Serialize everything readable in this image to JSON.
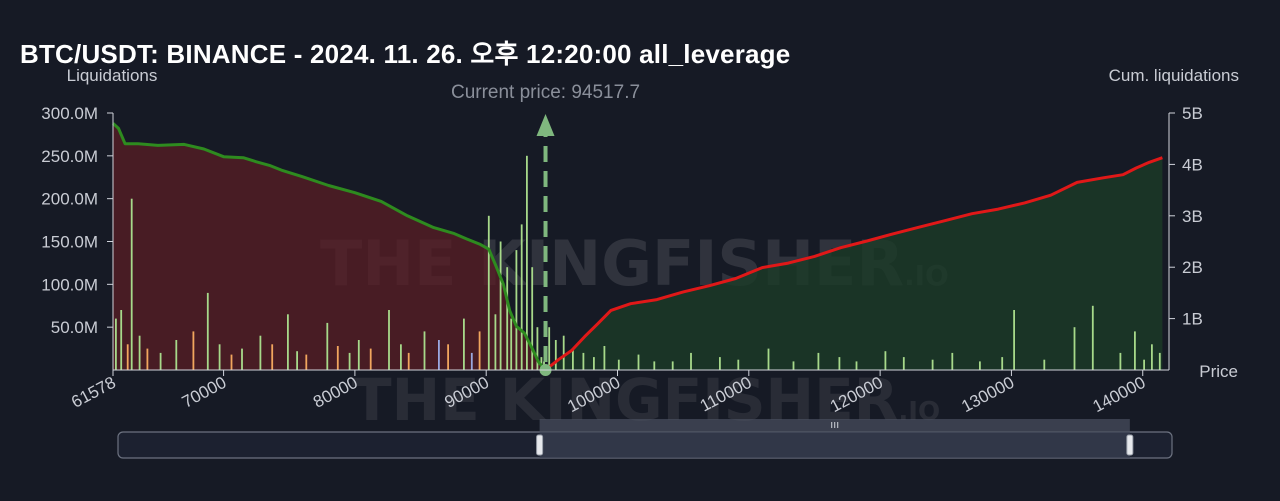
{
  "title": "BTC/USDT: BINANCE - 2024. 11. 26. 오후 12:20:00 all_leverage",
  "watermark": {
    "main": "THE KINGFISHER",
    "suffix": ".IO"
  },
  "colors": {
    "background": "#161a25",
    "short_cum_line": "#2e8b1f",
    "long_cum_line": "#e01818",
    "short_fill": "#5a1d24",
    "long_fill": "#1b3b27",
    "bar_green": "#a7d98a",
    "bar_orange": "#f2a65e",
    "bar_blue": "#9aa8e0",
    "current_price_marker": "#7fb77e"
  },
  "chart_data": {
    "type": "bar+line",
    "left_axis_title": "Liquidations",
    "right_axis_title": "Cum. liquidations",
    "x_axis_title": "Price",
    "current_price_label": "Current price: 94517.7",
    "current_price": 94517.7,
    "x_range": [
      61578,
      142000
    ],
    "x_ticks": [
      {
        "value": 61578,
        "label": "61578"
      },
      {
        "value": 70000,
        "label": "70000"
      },
      {
        "value": 80000,
        "label": "80000"
      },
      {
        "value": 90000,
        "label": "90000"
      },
      {
        "value": 100000,
        "label": "100000"
      },
      {
        "value": 110000,
        "label": "110000"
      },
      {
        "value": 120000,
        "label": "120000"
      },
      {
        "value": 130000,
        "label": "130000"
      },
      {
        "value": 140000,
        "label": "140000"
      }
    ],
    "y_left_range": [
      0,
      300000000
    ],
    "y_left_ticks": [
      {
        "value": 50000000,
        "label": "50.0M"
      },
      {
        "value": 100000000,
        "label": "100.0M"
      },
      {
        "value": 150000000,
        "label": "150.0M"
      },
      {
        "value": 200000000,
        "label": "200.0M"
      },
      {
        "value": 250000000,
        "label": "250.0M"
      },
      {
        "value": 300000000,
        "label": "300.0M"
      }
    ],
    "y_right_range": [
      0,
      5000000000
    ],
    "y_right_ticks": [
      {
        "value": 1000000000,
        "label": "1B"
      },
      {
        "value": 2000000000,
        "label": "2B"
      },
      {
        "value": 3000000000,
        "label": "3B"
      },
      {
        "value": 4000000000,
        "label": "4B"
      },
      {
        "value": 5000000000,
        "label": "5B"
      }
    ],
    "short_cum_series": {
      "x": [
        61578,
        62000,
        62500,
        63500,
        65000,
        67000,
        68500,
        70000,
        71500,
        72500,
        73500,
        74500,
        76000,
        78000,
        80000,
        82000,
        84000,
        86000,
        87500,
        88500,
        89500,
        90200,
        90700,
        91300,
        91800,
        92300,
        92900,
        93500,
        94000,
        94518
      ],
      "y": [
        4800000000,
        4700000000,
        4400000000,
        4400000000,
        4370000000,
        4390000000,
        4300000000,
        4150000000,
        4130000000,
        4050000000,
        3980000000,
        3880000000,
        3760000000,
        3590000000,
        3450000000,
        3280000000,
        3000000000,
        2770000000,
        2660000000,
        2550000000,
        2450000000,
        2350000000,
        2050000000,
        1670000000,
        1150000000,
        850000000,
        720000000,
        420000000,
        150000000,
        0
      ]
    },
    "long_cum_series": {
      "x": [
        94518,
        95500,
        96500,
        97500,
        98500,
        99500,
        101000,
        103000,
        105000,
        107000,
        109000,
        111000,
        113000,
        115000,
        117000,
        119000,
        121000,
        123000,
        125000,
        127000,
        129000,
        131000,
        133000,
        135000,
        137000,
        138500,
        139500,
        140500,
        141500
      ],
      "y": [
        0,
        200000000,
        380000000,
        650000000,
        900000000,
        1160000000,
        1290000000,
        1370000000,
        1520000000,
        1640000000,
        1780000000,
        1990000000,
        2080000000,
        2210000000,
        2380000000,
        2510000000,
        2650000000,
        2780000000,
        2910000000,
        3040000000,
        3130000000,
        3250000000,
        3400000000,
        3650000000,
        3740000000,
        3800000000,
        3930000000,
        4040000000,
        4130000000
      ]
    },
    "liquidation_bars": {
      "x": [
        61800,
        62200,
        62700,
        63000,
        63600,
        64200,
        65200,
        66400,
        67700,
        68800,
        69700,
        70600,
        71400,
        72800,
        73700,
        74900,
        75600,
        76300,
        77900,
        78700,
        79600,
        80300,
        81200,
        82600,
        83500,
        84100,
        85300,
        86400,
        87100,
        88300,
        88900,
        89500,
        90200,
        90700,
        91100,
        91600,
        91900,
        92300,
        92700,
        93100,
        93500,
        93900,
        94200,
        94400,
        94800,
        95300,
        95900,
        96600,
        97400,
        98200,
        99000,
        100100,
        101600,
        102800,
        104200,
        105600,
        107800,
        109200,
        111500,
        113400,
        115300,
        116900,
        118200,
        120400,
        121800,
        124000,
        125500,
        127600,
        129300,
        130200,
        132500,
        134800,
        136200,
        138300,
        139400,
        140100,
        140700,
        141300
      ],
      "values": [
        60000000,
        70000000,
        30000000,
        200000000,
        40000000,
        25000000,
        20000000,
        35000000,
        45000000,
        90000000,
        30000000,
        18000000,
        25000000,
        40000000,
        30000000,
        65000000,
        22000000,
        18000000,
        55000000,
        28000000,
        20000000,
        35000000,
        25000000,
        70000000,
        30000000,
        20000000,
        45000000,
        35000000,
        30000000,
        60000000,
        20000000,
        45000000,
        180000000,
        65000000,
        150000000,
        120000000,
        60000000,
        140000000,
        170000000,
        250000000,
        120000000,
        50000000,
        15000000,
        10000000,
        50000000,
        35000000,
        40000000,
        25000000,
        20000000,
        15000000,
        28000000,
        12000000,
        18000000,
        10000000,
        10000000,
        20000000,
        15000000,
        12000000,
        25000000,
        10000000,
        20000000,
        15000000,
        10000000,
        22000000,
        15000000,
        12000000,
        20000000,
        10000000,
        15000000,
        70000000,
        12000000,
        50000000,
        75000000,
        20000000,
        45000000,
        12000000,
        30000000,
        20000000
      ],
      "colors": [
        "green",
        "green",
        "orange",
        "green",
        "green",
        "orange",
        "green",
        "green",
        "orange",
        "green",
        "green",
        "orange",
        "green",
        "green",
        "orange",
        "green",
        "green",
        "orange",
        "green",
        "orange",
        "green",
        "green",
        "orange",
        "green",
        "green",
        "orange",
        "green",
        "blue",
        "orange",
        "green",
        "blue",
        "orange",
        "green",
        "green",
        "green",
        "green",
        "green",
        "green",
        "green",
        "green",
        "green",
        "green",
        "green",
        "green",
        "green",
        "green",
        "green",
        "green",
        "green",
        "green",
        "green",
        "green",
        "green",
        "green",
        "green",
        "green",
        "green",
        "green",
        "green",
        "green",
        "green",
        "green",
        "green",
        "green",
        "green",
        "green",
        "green",
        "green",
        "green",
        "green",
        "green",
        "green",
        "green",
        "green",
        "green",
        "green",
        "green",
        "green"
      ]
    },
    "grid": false,
    "legend": "none"
  },
  "zoom_slider": {
    "range_start": 0.4,
    "range_end": 0.96
  }
}
